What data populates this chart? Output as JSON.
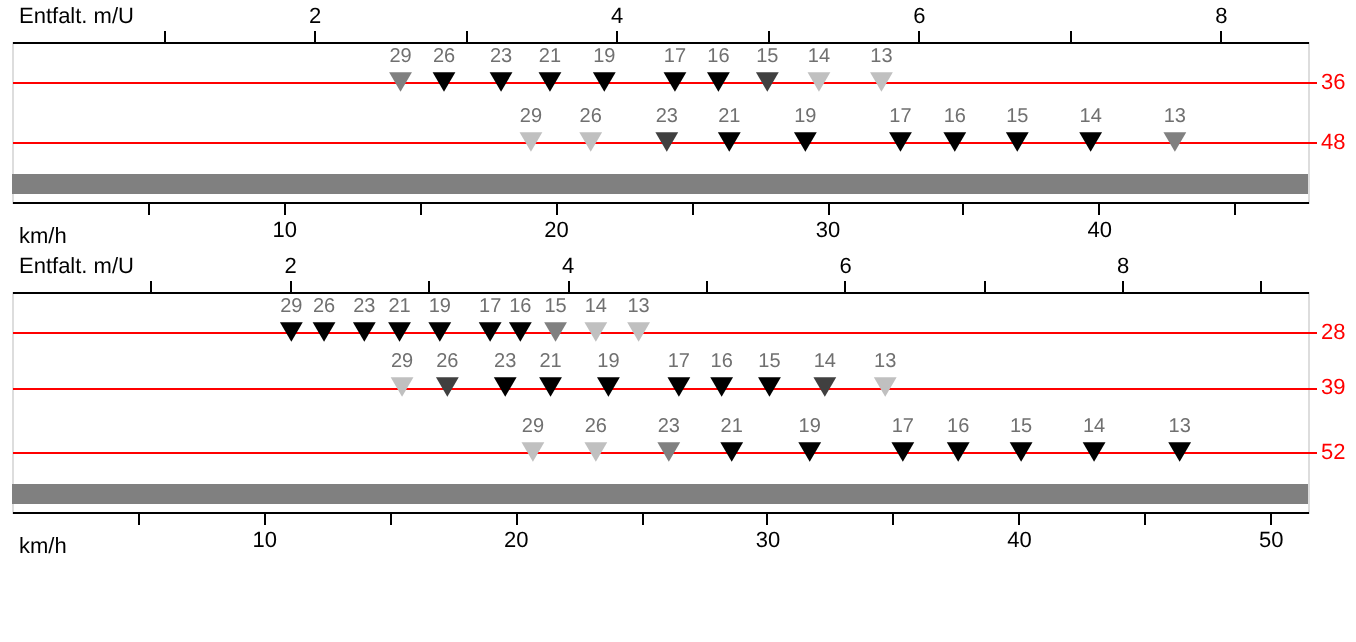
{
  "chart_data": [
    {
      "type": "scatter",
      "xlabel": "km/h",
      "x2label": "Entfalt. m/U",
      "xlim": [
        0,
        47.7
      ],
      "x2lim": [
        0,
        8.58
      ],
      "ylim": [
        60,
        28
      ],
      "yticks": [
        36,
        48
      ],
      "xticks": [
        {
          "value": 5,
          "label": null
        },
        10,
        {
          "value": 15,
          "label": null
        },
        20,
        {
          "value": 25,
          "label": null
        },
        30,
        {
          "value": 35,
          "label": null
        },
        40,
        {
          "value": 45,
          "label": null
        }
      ],
      "x2ticks": [
        {
          "value": 1,
          "label": null
        },
        2,
        {
          "value": 3,
          "label": null
        },
        4,
        {
          "value": 5,
          "label": null
        },
        6,
        {
          "value": 7,
          "label": null
        },
        8
      ],
      "marker": "triangle",
      "grid": "y",
      "bands": [
        {
          "axis": "x",
          "from": 0,
          "to": 47.7,
          "color": "#808080"
        }
      ],
      "series": [
        {
          "color": "#ff0000",
          "x": [
            14.3,
            15.9,
            18.0,
            19.8,
            21.8,
            24.4,
            26.0,
            27.8,
            29.7,
            32.0
          ],
          "values": [
            36,
            36,
            36,
            36,
            36,
            36,
            36,
            36,
            36,
            36
          ],
          "colors": [
            "#808080",
            "#000000",
            "#000000",
            "#000000",
            "#000000",
            "#000000",
            "#000000",
            "#404040",
            "#c0c0c0",
            "#c0c0c0"
          ]
        },
        {
          "color": "#ff0000",
          "x": [
            19.1,
            21.3,
            24.1,
            26.4,
            29.2,
            32.7,
            34.7,
            37.0,
            39.7,
            42.8
          ],
          "values": [
            48,
            48,
            48,
            48,
            48,
            48,
            48,
            48,
            48,
            48
          ],
          "colors": [
            "#c0c0c0",
            "#c0c0c0",
            "#404040",
            "#000000",
            "#000000",
            "#000000",
            "#000000",
            "#000000",
            "#000000",
            "#808080"
          ]
        }
      ],
      "annotations": [
        {
          "text": "29",
          "x": 14.3,
          "y": 36
        },
        {
          "text": "26",
          "x": 15.9,
          "y": 36
        },
        {
          "text": "23",
          "x": 18.0,
          "y": 36
        },
        {
          "text": "21",
          "x": 19.8,
          "y": 36
        },
        {
          "text": "19",
          "x": 21.8,
          "y": 36
        },
        {
          "text": "17",
          "x": 24.4,
          "y": 36
        },
        {
          "text": "16",
          "x": 26.0,
          "y": 36
        },
        {
          "text": "15",
          "x": 27.8,
          "y": 36
        },
        {
          "text": "14",
          "x": 29.7,
          "y": 36
        },
        {
          "text": "13",
          "x": 32.0,
          "y": 36
        },
        {
          "text": "29",
          "x": 19.1,
          "y": 48
        },
        {
          "text": "26",
          "x": 21.3,
          "y": 48
        },
        {
          "text": "23",
          "x": 24.1,
          "y": 48
        },
        {
          "text": "21",
          "x": 26.4,
          "y": 48
        },
        {
          "text": "19",
          "x": 29.2,
          "y": 48
        },
        {
          "text": "17",
          "x": 32.7,
          "y": 48
        },
        {
          "text": "16",
          "x": 34.7,
          "y": 48
        },
        {
          "text": "15",
          "x": 37.0,
          "y": 48
        },
        {
          "text": "14",
          "x": 39.7,
          "y": 48
        },
        {
          "text": "13",
          "x": 42.8,
          "y": 48
        }
      ]
    },
    {
      "type": "scatter",
      "xlabel": "km/h",
      "x2label": "Entfalt. m/U",
      "xlim": [
        0,
        51.5
      ],
      "x2lim": [
        0,
        9.34
      ],
      "ylim": [
        64,
        20
      ],
      "yticks": [
        28,
        39,
        52
      ],
      "xticks": [
        {
          "value": 5,
          "label": null
        },
        10,
        {
          "value": 15,
          "label": null
        },
        20,
        {
          "value": 25,
          "label": null
        },
        30,
        {
          "value": 35,
          "label": null
        },
        40,
        {
          "value": 45,
          "label": null
        },
        50
      ],
      "x2ticks": [
        {
          "value": 1,
          "label": null
        },
        2,
        {
          "value": 3,
          "label": null
        },
        4,
        {
          "value": 5,
          "label": null
        },
        6,
        {
          "value": 7,
          "label": null
        },
        8,
        {
          "value": 9,
          "label": null
        }
      ],
      "marker": "triangle",
      "grid": "y",
      "bands": [
        {
          "axis": "x",
          "from": 0,
          "to": 51.5,
          "color": "#808080"
        }
      ],
      "series": [
        {
          "color": "#ff0000",
          "x": [
            11.1,
            12.4,
            14.0,
            15.4,
            17.0,
            19.0,
            20.2,
            21.6,
            23.2,
            24.9
          ],
          "values": [
            28,
            28,
            28,
            28,
            28,
            28,
            28,
            28,
            28,
            28
          ],
          "colors": [
            "#000000",
            "#000000",
            "#000000",
            "#000000",
            "#000000",
            "#000000",
            "#000000",
            "#808080",
            "#c0c0c0",
            "#c0c0c0"
          ]
        },
        {
          "color": "#ff0000",
          "x": [
            15.5,
            17.3,
            19.6,
            21.4,
            23.7,
            26.5,
            28.2,
            30.1,
            32.3,
            34.7
          ],
          "values": [
            39,
            39,
            39,
            39,
            39,
            39,
            39,
            39,
            39,
            39
          ],
          "colors": [
            "#c0c0c0",
            "#404040",
            "#000000",
            "#000000",
            "#000000",
            "#000000",
            "#000000",
            "#000000",
            "#404040",
            "#c0c0c0"
          ]
        },
        {
          "color": "#ff0000",
          "x": [
            20.7,
            23.2,
            26.1,
            28.6,
            31.7,
            35.4,
            37.6,
            40.1,
            43.0,
            46.4
          ],
          "values": [
            52,
            52,
            52,
            52,
            52,
            52,
            52,
            52,
            52,
            52
          ],
          "colors": [
            "#c0c0c0",
            "#c0c0c0",
            "#808080",
            "#000000",
            "#000000",
            "#000000",
            "#000000",
            "#000000",
            "#000000",
            "#000000"
          ]
        }
      ],
      "annotations": [
        {
          "text": "29",
          "x": 11.1,
          "y": 28
        },
        {
          "text": "26",
          "x": 12.4,
          "y": 28
        },
        {
          "text": "23",
          "x": 14.0,
          "y": 28
        },
        {
          "text": "21",
          "x": 15.4,
          "y": 28
        },
        {
          "text": "19",
          "x": 17.0,
          "y": 28
        },
        {
          "text": "17",
          "x": 19.0,
          "y": 28
        },
        {
          "text": "16",
          "x": 20.2,
          "y": 28
        },
        {
          "text": "15",
          "x": 21.6,
          "y": 28
        },
        {
          "text": "14",
          "x": 23.2,
          "y": 28
        },
        {
          "text": "13",
          "x": 24.9,
          "y": 28
        },
        {
          "text": "29",
          "x": 15.5,
          "y": 39
        },
        {
          "text": "26",
          "x": 17.3,
          "y": 39
        },
        {
          "text": "23",
          "x": 19.6,
          "y": 39
        },
        {
          "text": "21",
          "x": 21.4,
          "y": 39
        },
        {
          "text": "19",
          "x": 23.7,
          "y": 39
        },
        {
          "text": "17",
          "x": 26.5,
          "y": 39
        },
        {
          "text": "16",
          "x": 28.2,
          "y": 39
        },
        {
          "text": "15",
          "x": 30.1,
          "y": 39
        },
        {
          "text": "14",
          "x": 32.3,
          "y": 39
        },
        {
          "text": "13",
          "x": 34.7,
          "y": 39
        },
        {
          "text": "29",
          "x": 20.7,
          "y": 52
        },
        {
          "text": "26",
          "x": 23.2,
          "y": 52
        },
        {
          "text": "23",
          "x": 26.1,
          "y": 52
        },
        {
          "text": "21",
          "x": 28.6,
          "y": 52
        },
        {
          "text": "19",
          "x": 31.7,
          "y": 52
        },
        {
          "text": "17",
          "x": 35.4,
          "y": 52
        },
        {
          "text": "16",
          "x": 37.6,
          "y": 52
        },
        {
          "text": "15",
          "x": 40.1,
          "y": 52
        },
        {
          "text": "14",
          "x": 43.0,
          "y": 52
        },
        {
          "text": "13",
          "x": 46.4,
          "y": 52
        }
      ]
    }
  ]
}
